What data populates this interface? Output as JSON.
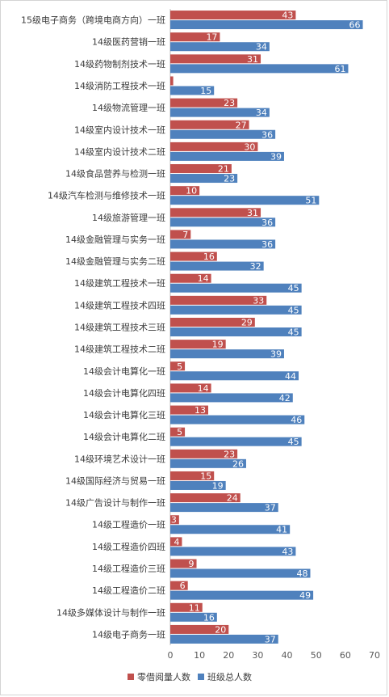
{
  "chart_data": {
    "type": "bar",
    "orientation": "horizontal",
    "categories": [
      "15级电子商务（跨境电商方向）一班",
      "14级医药营销一班",
      "14级药物制剂技术一班",
      "14级消防工程技术一班",
      "14级物流管理一班",
      "14级室内设计技术一班",
      "14级室内设计技术二班",
      "14级食品营养与检测一班",
      "14级汽车检测与维修技术一班",
      "14级旅游管理一班",
      "14级金融管理与实务一班",
      "14级金融管理与实务二班",
      "14级建筑工程技术一班",
      "14级建筑工程技术四班",
      "14级建筑工程技术三班",
      "14级建筑工程技术二班",
      "14级会计电算化一班",
      "14级会计电算化四班",
      "14级会计电算化三班",
      "14级会计电算化二班",
      "14级环境艺术设计一班",
      "14级国际经济与贸易一班",
      "14级广告设计与制作一班",
      "14级工程造价一班",
      "14级工程造价四班",
      "14级工程造价三班",
      "14级工程造价二班",
      "14级多媒体设计与制作一班",
      "14级电子商务一班"
    ],
    "series": [
      {
        "name": "零借阅量人数",
        "color": "#c0504d",
        "values": [
          43,
          17,
          31,
          1,
          23,
          27,
          30,
          21,
          10,
          31,
          7,
          16,
          14,
          33,
          29,
          19,
          5,
          14,
          13,
          5,
          23,
          15,
          24,
          3,
          4,
          9,
          6,
          11,
          20
        ]
      },
      {
        "name": "班级总人数",
        "color": "#4f81bd",
        "values": [
          66,
          34,
          61,
          15,
          34,
          36,
          39,
          23,
          51,
          36,
          36,
          32,
          45,
          45,
          45,
          39,
          44,
          42,
          46,
          45,
          26,
          19,
          37,
          41,
          43,
          48,
          49,
          16,
          37
        ]
      }
    ],
    "xlim": [
      0,
      70
    ],
    "xticks": [
      0,
      10,
      20,
      30,
      40,
      50,
      60,
      70
    ],
    "grid": false,
    "legend_position": "bottom",
    "title": "",
    "xlabel": "",
    "ylabel": ""
  }
}
